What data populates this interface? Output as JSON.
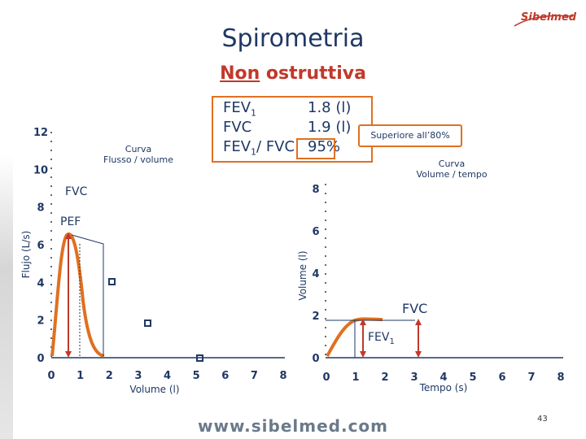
{
  "header": {
    "title": "Spirometria",
    "subtitle_underlined": "Non",
    "subtitle_rest": " ostruttiva",
    "logo": "Sibelmed"
  },
  "params": {
    "rows": [
      {
        "label": "FEV",
        "sub": "1",
        "label_after": "",
        "value": "1.8 (l)"
      },
      {
        "label": "FVC",
        "sub": "",
        "label_after": "",
        "value": "1.9 (l)"
      },
      {
        "label": "FEV",
        "sub": "1",
        "label_after": "/ FVC",
        "value": "95%"
      }
    ],
    "badge": "Superiore all’80%"
  },
  "flow_volume": {
    "note_line1": "Curva",
    "note_line2": "Flusso / volume",
    "y_label": "Flujo (L/s)",
    "x_label": "Volume (l)",
    "y_ticks": [
      "0",
      "2",
      "4",
      "6",
      "8",
      "10",
      "12"
    ],
    "x_ticks": [
      "0",
      "1",
      "2",
      "3",
      "4",
      "5",
      "6",
      "7",
      "8"
    ],
    "fvc_tag": "FVC",
    "pef_tag": "PEF"
  },
  "volume_time": {
    "note_line1": "Curva",
    "note_line2": "Volume / tempo",
    "y_label": "Volume (l)",
    "x_label": "Tempo (s)",
    "y_ticks": [
      "0",
      "2",
      "4",
      "6",
      "8"
    ],
    "x_ticks": [
      "0",
      "1",
      "2",
      "3",
      "4",
      "5",
      "6",
      "7",
      "8"
    ],
    "fvc_tag": "FVC",
    "fev1_tag": "FEV",
    "fev1_sub": "1"
  },
  "footer": {
    "website": "www.sibelmed.com",
    "page_number": "43"
  },
  "colors": {
    "curve": "#e07020",
    "marker": "#c0392b",
    "axis": "#1f3864",
    "text": "#1f3864",
    "accent": "#c0392b"
  }
}
